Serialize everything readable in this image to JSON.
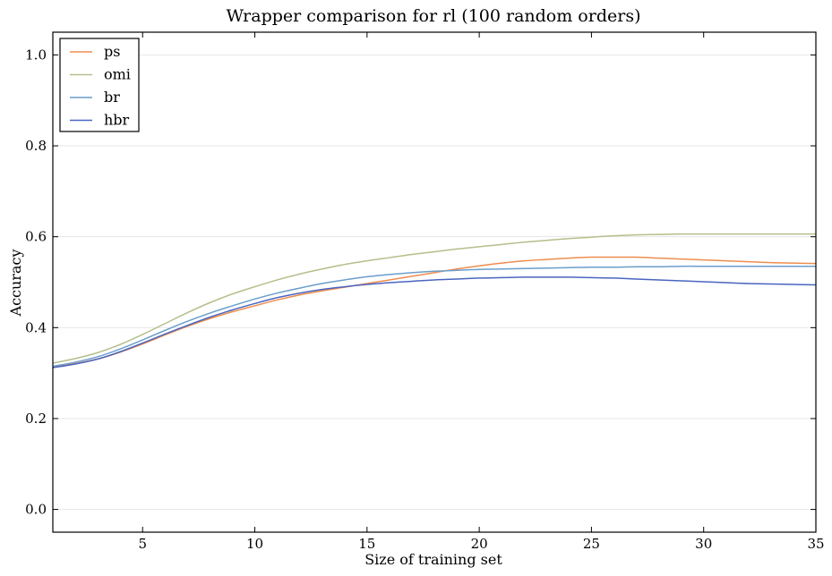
{
  "chart_data": {
    "type": "line",
    "title": "Wrapper comparison for rl (100 random orders)",
    "xlabel": "Size of training set",
    "ylabel": "Accuracy",
    "xlim": [
      1,
      35
    ],
    "ylim": [
      -0.05,
      1.05
    ],
    "xticks": [
      5,
      10,
      15,
      20,
      25,
      30,
      35
    ],
    "yticks": [
      0.0,
      0.2,
      0.4,
      0.6,
      0.8,
      1.0
    ],
    "xtick_labels": [
      "5",
      "10",
      "15",
      "20",
      "25",
      "30",
      "35"
    ],
    "ytick_labels": [
      "0.0",
      "0.2",
      "0.4",
      "0.6",
      "0.8",
      "1.0"
    ],
    "grid": "horizontal",
    "legend_position": "top-left",
    "x": [
      1,
      2,
      3,
      4,
      5,
      6,
      7,
      8,
      9,
      10,
      11,
      12,
      13,
      14,
      15,
      16,
      17,
      18,
      19,
      20,
      21,
      22,
      23,
      24,
      25,
      26,
      27,
      28,
      29,
      30,
      31,
      32,
      33,
      34,
      35
    ],
    "series": [
      {
        "name": "ps",
        "color": "#ee8d4e",
        "values": [
          0.313,
          0.321,
          0.331,
          0.346,
          0.364,
          0.384,
          0.403,
          0.42,
          0.435,
          0.448,
          0.461,
          0.472,
          0.481,
          0.489,
          0.497,
          0.505,
          0.513,
          0.521,
          0.529,
          0.536,
          0.542,
          0.547,
          0.55,
          0.553,
          0.555,
          0.555,
          0.555,
          0.553,
          0.551,
          0.549,
          0.547,
          0.545,
          0.543,
          0.542,
          0.541
        ]
      },
      {
        "name": "omi",
        "color": "#b4bf8b",
        "values": [
          0.322,
          0.332,
          0.345,
          0.363,
          0.385,
          0.409,
          0.433,
          0.455,
          0.474,
          0.49,
          0.505,
          0.518,
          0.529,
          0.539,
          0.547,
          0.554,
          0.561,
          0.567,
          0.573,
          0.578,
          0.583,
          0.588,
          0.592,
          0.596,
          0.599,
          0.602,
          0.604,
          0.605,
          0.606,
          0.606,
          0.606,
          0.606,
          0.606,
          0.606,
          0.606
        ]
      },
      {
        "name": "br",
        "color": "#6a9ecb",
        "values": [
          0.315,
          0.324,
          0.336,
          0.353,
          0.373,
          0.394,
          0.414,
          0.432,
          0.448,
          0.463,
          0.476,
          0.487,
          0.497,
          0.505,
          0.512,
          0.517,
          0.521,
          0.524,
          0.526,
          0.528,
          0.529,
          0.53,
          0.531,
          0.532,
          0.533,
          0.533,
          0.534,
          0.534,
          0.535,
          0.535,
          0.535,
          0.535,
          0.535,
          0.535,
          0.535
        ]
      },
      {
        "name": "hbr",
        "color": "#4a65c0",
        "values": [
          0.312,
          0.32,
          0.331,
          0.347,
          0.366,
          0.386,
          0.405,
          0.423,
          0.439,
          0.453,
          0.466,
          0.476,
          0.484,
          0.49,
          0.495,
          0.499,
          0.502,
          0.505,
          0.507,
          0.509,
          0.51,
          0.511,
          0.511,
          0.511,
          0.51,
          0.509,
          0.507,
          0.505,
          0.503,
          0.501,
          0.499,
          0.497,
          0.496,
          0.495,
          0.494
        ]
      }
    ]
  }
}
